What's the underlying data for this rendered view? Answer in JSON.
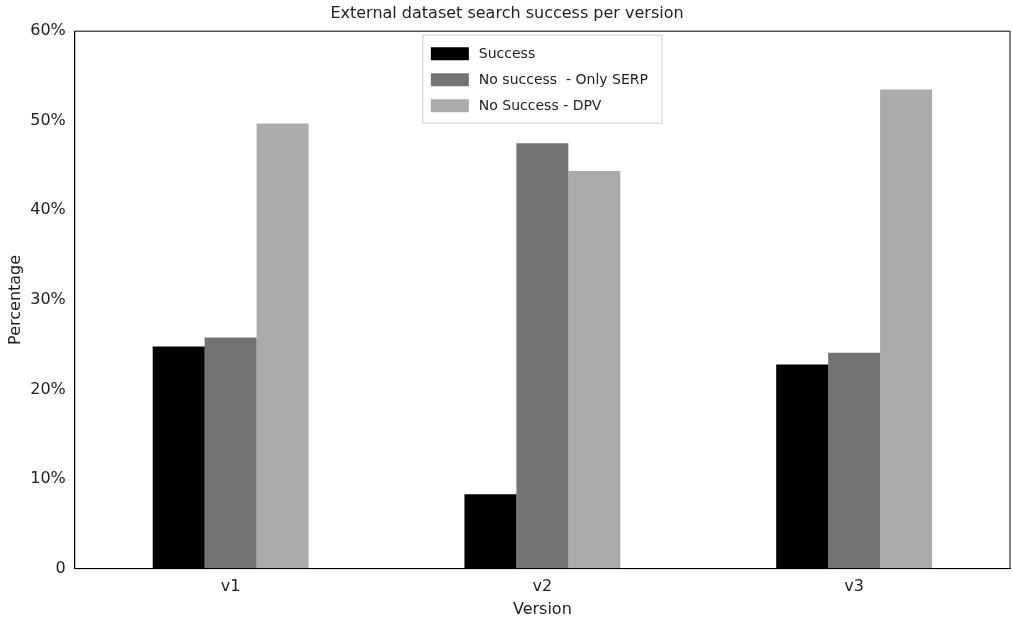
{
  "chart_data": {
    "type": "bar",
    "title": "External dataset search success per version",
    "xlabel": "Version",
    "ylabel": "Percentage",
    "categories": [
      "v1",
      "v2",
      "v3"
    ],
    "series": [
      {
        "name": "Success",
        "color": "#000000",
        "values": [
          24.8,
          8.3,
          22.8
        ]
      },
      {
        "name": "No success  - Only SERP",
        "color": "#737373",
        "values": [
          25.8,
          47.5,
          24.1
        ]
      },
      {
        "name": "No Success - DPV",
        "color": "#ababab",
        "values": [
          49.7,
          44.4,
          53.5
        ]
      }
    ],
    "ylim": [
      0,
      60
    ],
    "yticks": [
      0,
      {
        "value": 10,
        "label": "10%"
      },
      {
        "value": 20,
        "label": "20%"
      },
      {
        "value": 30,
        "label": "30%"
      },
      {
        "value": 40,
        "label": "40%"
      },
      {
        "value": 50,
        "label": "50%"
      },
      {
        "value": 60,
        "label": "60%"
      }
    ],
    "grid": false,
    "legend": "top"
  }
}
